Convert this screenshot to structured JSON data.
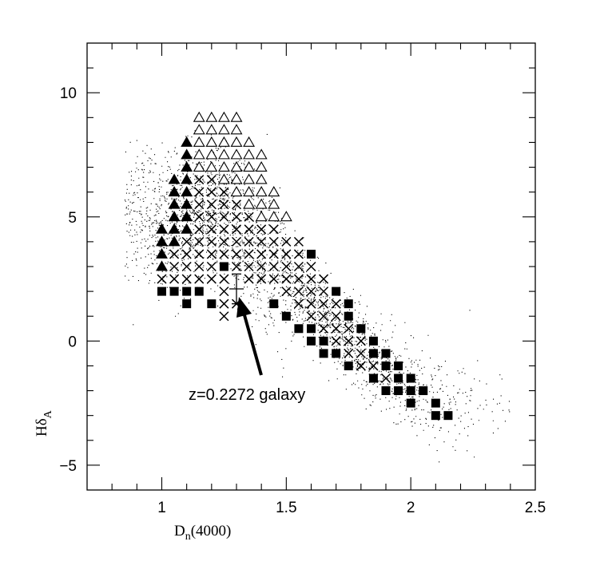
{
  "chart_data": {
    "type": "scatter",
    "title": "",
    "xlabel": "D_n(4000)",
    "ylabel": "Hδ_A",
    "xlim": [
      0.7,
      2.5
    ],
    "ylim": [
      -6,
      12
    ],
    "xticks": [
      "1",
      "1.5",
      "2",
      "2.5"
    ],
    "yticks": [
      "10",
      "5",
      "0",
      "−5"
    ],
    "grid": false,
    "annotation": {
      "text": "z=0.2272 galaxy",
      "galaxy_point": {
        "x": 1.3,
        "y": 2.1,
        "yerr_low": 1.5,
        "yerr_high": 2.7
      }
    },
    "background_cloud": {
      "description_points": "dense scatter of galaxies",
      "ridge": [
        [
          1.05,
          5.0
        ],
        [
          1.25,
          5.2
        ],
        [
          1.5,
          2.5
        ],
        [
          1.75,
          0.0
        ],
        [
          2.0,
          -2.0
        ],
        [
          2.2,
          -2.6
        ]
      ]
    },
    "series": [
      {
        "marker": "open-triangle",
        "points": [
          [
            1.15,
            9.0
          ],
          [
            1.2,
            9.0
          ],
          [
            1.25,
            9.0
          ],
          [
            1.3,
            9.0
          ],
          [
            1.15,
            8.5
          ],
          [
            1.2,
            8.5
          ],
          [
            1.25,
            8.5
          ],
          [
            1.3,
            8.5
          ],
          [
            1.15,
            8.0
          ],
          [
            1.2,
            8.0
          ],
          [
            1.25,
            8.0
          ],
          [
            1.3,
            8.0
          ],
          [
            1.35,
            8.0
          ],
          [
            1.15,
            7.5
          ],
          [
            1.2,
            7.5
          ],
          [
            1.25,
            7.5
          ],
          [
            1.3,
            7.5
          ],
          [
            1.35,
            7.5
          ],
          [
            1.4,
            7.5
          ],
          [
            1.15,
            7.0
          ],
          [
            1.2,
            7.0
          ],
          [
            1.25,
            7.0
          ],
          [
            1.3,
            7.0
          ],
          [
            1.35,
            7.0
          ],
          [
            1.4,
            7.0
          ],
          [
            1.25,
            6.5
          ],
          [
            1.3,
            6.5
          ],
          [
            1.35,
            6.5
          ],
          [
            1.4,
            6.5
          ],
          [
            1.3,
            6.0
          ],
          [
            1.35,
            6.0
          ],
          [
            1.4,
            6.0
          ],
          [
            1.45,
            6.0
          ],
          [
            1.35,
            5.5
          ],
          [
            1.4,
            5.5
          ],
          [
            1.45,
            5.5
          ],
          [
            1.4,
            5.0
          ],
          [
            1.45,
            5.0
          ],
          [
            1.5,
            5.0
          ]
        ]
      },
      {
        "marker": "filled-triangle",
        "points": [
          [
            1.1,
            8.0
          ],
          [
            1.1,
            7.5
          ],
          [
            1.1,
            7.0
          ],
          [
            1.05,
            6.5
          ],
          [
            1.1,
            6.5
          ],
          [
            1.05,
            6.0
          ],
          [
            1.1,
            6.0
          ],
          [
            1.05,
            5.5
          ],
          [
            1.1,
            5.5
          ],
          [
            1.05,
            5.0
          ],
          [
            1.1,
            5.0
          ],
          [
            1.0,
            4.5
          ],
          [
            1.05,
            4.5
          ],
          [
            1.1,
            4.5
          ],
          [
            1.0,
            4.0
          ],
          [
            1.05,
            4.0
          ],
          [
            1.0,
            3.5
          ],
          [
            1.0,
            3.0
          ]
        ]
      },
      {
        "marker": "cross",
        "points": [
          [
            1.15,
            6.5
          ],
          [
            1.2,
            6.5
          ],
          [
            1.15,
            6.0
          ],
          [
            1.2,
            6.0
          ],
          [
            1.25,
            6.0
          ],
          [
            1.15,
            5.5
          ],
          [
            1.2,
            5.5
          ],
          [
            1.25,
            5.5
          ],
          [
            1.3,
            5.5
          ],
          [
            1.15,
            5.0
          ],
          [
            1.2,
            5.0
          ],
          [
            1.25,
            5.0
          ],
          [
            1.3,
            5.0
          ],
          [
            1.35,
            5.0
          ],
          [
            1.15,
            4.5
          ],
          [
            1.2,
            4.5
          ],
          [
            1.25,
            4.5
          ],
          [
            1.3,
            4.5
          ],
          [
            1.35,
            4.5
          ],
          [
            1.4,
            4.5
          ],
          [
            1.45,
            4.5
          ],
          [
            1.1,
            4.0
          ],
          [
            1.15,
            4.0
          ],
          [
            1.2,
            4.0
          ],
          [
            1.25,
            4.0
          ],
          [
            1.3,
            4.0
          ],
          [
            1.35,
            4.0
          ],
          [
            1.4,
            4.0
          ],
          [
            1.45,
            4.0
          ],
          [
            1.5,
            4.0
          ],
          [
            1.55,
            4.0
          ],
          [
            1.05,
            3.5
          ],
          [
            1.1,
            3.5
          ],
          [
            1.15,
            3.5
          ],
          [
            1.2,
            3.5
          ],
          [
            1.25,
            3.5
          ],
          [
            1.3,
            3.5
          ],
          [
            1.35,
            3.5
          ],
          [
            1.4,
            3.5
          ],
          [
            1.45,
            3.5
          ],
          [
            1.5,
            3.5
          ],
          [
            1.55,
            3.5
          ],
          [
            1.05,
            3.0
          ],
          [
            1.1,
            3.0
          ],
          [
            1.15,
            3.0
          ],
          [
            1.2,
            3.0
          ],
          [
            1.3,
            3.0
          ],
          [
            1.35,
            3.0
          ],
          [
            1.4,
            3.0
          ],
          [
            1.45,
            3.0
          ],
          [
            1.5,
            3.0
          ],
          [
            1.55,
            3.0
          ],
          [
            1.6,
            3.0
          ],
          [
            1.0,
            2.5
          ],
          [
            1.05,
            2.5
          ],
          [
            1.1,
            2.5
          ],
          [
            1.15,
            2.5
          ],
          [
            1.2,
            2.5
          ],
          [
            1.25,
            2.5
          ],
          [
            1.35,
            2.5
          ],
          [
            1.4,
            2.5
          ],
          [
            1.45,
            2.5
          ],
          [
            1.5,
            2.5
          ],
          [
            1.55,
            2.5
          ],
          [
            1.6,
            2.5
          ],
          [
            1.65,
            2.5
          ],
          [
            1.25,
            2.0
          ],
          [
            1.5,
            2.0
          ],
          [
            1.55,
            2.0
          ],
          [
            1.6,
            2.0
          ],
          [
            1.65,
            2.0
          ],
          [
            1.25,
            1.5
          ],
          [
            1.3,
            1.5
          ],
          [
            1.55,
            1.5
          ],
          [
            1.6,
            1.5
          ],
          [
            1.65,
            1.5
          ],
          [
            1.7,
            1.5
          ],
          [
            1.25,
            1.0
          ],
          [
            1.6,
            1.0
          ],
          [
            1.65,
            1.0
          ],
          [
            1.7,
            1.0
          ],
          [
            1.65,
            0.5
          ],
          [
            1.7,
            0.5
          ],
          [
            1.75,
            0.5
          ],
          [
            1.7,
            0.0
          ],
          [
            1.75,
            0.0
          ],
          [
            1.8,
            0.0
          ],
          [
            1.75,
            -0.5
          ],
          [
            1.8,
            -0.5
          ],
          [
            1.8,
            -1.0
          ],
          [
            1.85,
            -1.0
          ],
          [
            1.85,
            -1.5
          ],
          [
            1.9,
            -1.5
          ]
        ]
      },
      {
        "marker": "filled-square",
        "points": [
          [
            1.0,
            2.0
          ],
          [
            1.05,
            2.0
          ],
          [
            1.1,
            2.0
          ],
          [
            1.15,
            2.0
          ],
          [
            1.1,
            1.5
          ],
          [
            1.2,
            1.5
          ],
          [
            1.25,
            3.0
          ],
          [
            1.6,
            3.5
          ],
          [
            1.45,
            1.5
          ],
          [
            1.5,
            1.0
          ],
          [
            1.7,
            2.0
          ],
          [
            1.75,
            1.5
          ],
          [
            1.75,
            1.0
          ],
          [
            1.55,
            0.5
          ],
          [
            1.6,
            0.5
          ],
          [
            1.8,
            0.5
          ],
          [
            1.6,
            0.0
          ],
          [
            1.65,
            0.0
          ],
          [
            1.85,
            0.0
          ],
          [
            1.65,
            -0.5
          ],
          [
            1.7,
            -0.5
          ],
          [
            1.85,
            -0.5
          ],
          [
            1.9,
            -0.5
          ],
          [
            1.75,
            -1.0
          ],
          [
            1.9,
            -1.0
          ],
          [
            1.95,
            -1.0
          ],
          [
            1.85,
            -1.5
          ],
          [
            1.95,
            -1.5
          ],
          [
            2.0,
            -1.5
          ],
          [
            1.9,
            -2.0
          ],
          [
            1.95,
            -2.0
          ],
          [
            2.0,
            -2.0
          ],
          [
            2.05,
            -2.0
          ],
          [
            2.0,
            -2.5
          ],
          [
            2.1,
            -2.5
          ],
          [
            2.1,
            -3.0
          ],
          [
            2.15,
            -3.0
          ]
        ]
      }
    ]
  }
}
